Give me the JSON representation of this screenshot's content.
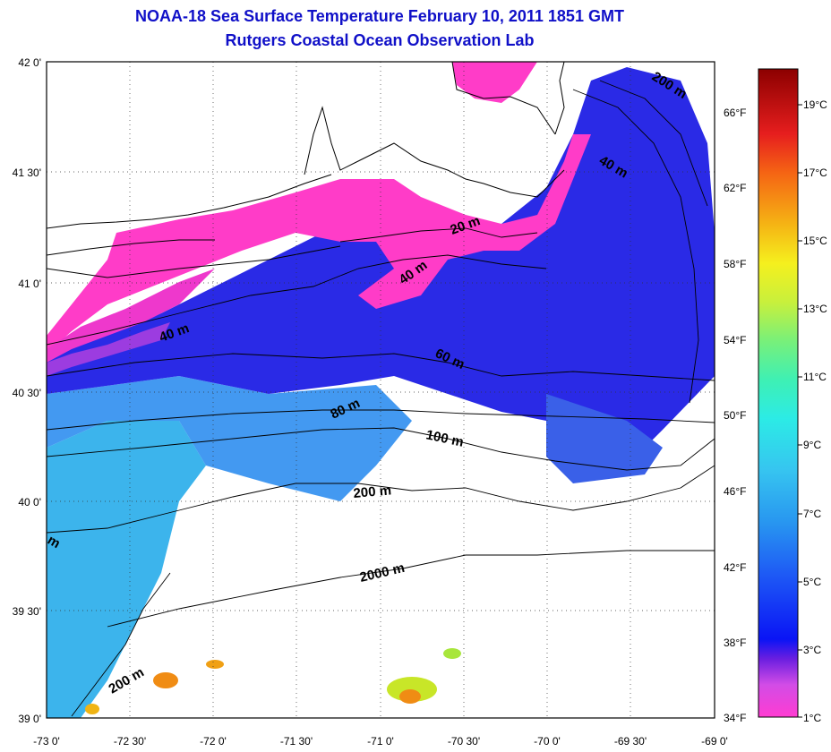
{
  "title_line1": "NOAA-18 Sea Surface Temperature February 10, 2011 1851 GMT",
  "title_line2": "Rutgers Coastal Ocean Observation Lab",
  "lat_labels": [
    "42 0'",
    "41 30'",
    "41 0'",
    "40 30'",
    "40 0'",
    "39 30'",
    "39 0'"
  ],
  "lon_labels": [
    "-73 0'",
    "-72 30'",
    "-72 0'",
    "-71 30'",
    "-71 0'",
    "-70 30'",
    "-70 0'",
    "-69 30'",
    "-69 0'"
  ],
  "fahrenheit_labels": [
    "66°F",
    "62°F",
    "58°F",
    "54°F",
    "50°F",
    "46°F",
    "42°F",
    "38°F",
    "34°F"
  ],
  "celsius_labels": [
    "19°C",
    "17°C",
    "15°C",
    "13°C",
    "11°C",
    "9°C",
    "7°C",
    "5°C",
    "3°C",
    "1°C"
  ],
  "depth_labels": {
    "d20": "20 m",
    "d40a": "40 m",
    "d40b": "40 m",
    "d40c": "40 m",
    "d60": "60 m",
    "d80": "80 m",
    "d100": "100 m",
    "d200a": "200 m",
    "d200b": "200 m",
    "d200c": "200 m",
    "d2000": "2000 m",
    "dm": "m"
  },
  "colors": {
    "title": "#1010c8",
    "cold_magenta": "#ff3cc8",
    "mid_blue": "#2828e6",
    "cyan": "#3cc8f0",
    "warm_orange": "#f08c14",
    "yellow_green": "#c8e628"
  }
}
